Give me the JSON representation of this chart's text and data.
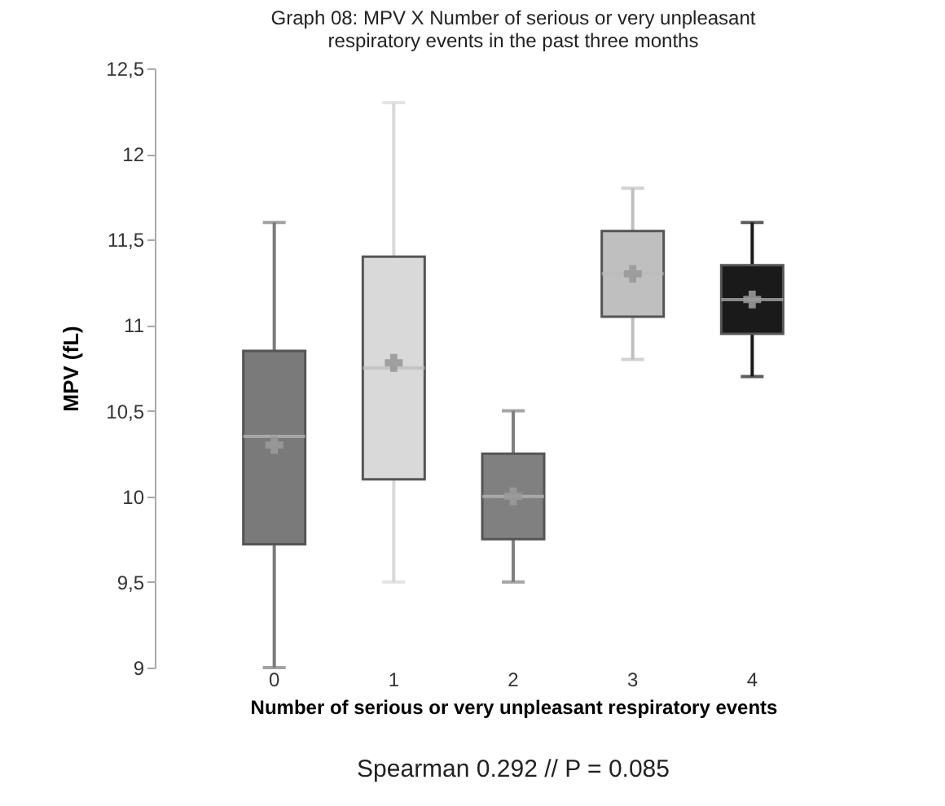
{
  "chart_data": {
    "type": "box",
    "title": [
      "Graph 08: MPV X Number of serious or very unpleasant",
      "respiratory events in the past three months"
    ],
    "xlabel": "Number of serious or very unpleasant respiratory events",
    "ylabel": "MPV (fL)",
    "categories": [
      "0",
      "1",
      "2",
      "3",
      "4"
    ],
    "colors": [
      "#7a7a7a",
      "#d9d9d9",
      "#808080",
      "#bfbfbf",
      "#1a1a1a"
    ],
    "boxes": [
      {
        "low": 9.0,
        "q1": 9.72,
        "median": 10.35,
        "q3": 10.85,
        "high": 11.6,
        "mean": 10.3
      },
      {
        "low": 9.5,
        "q1": 10.1,
        "median": 10.75,
        "q3": 11.4,
        "high": 12.3,
        "mean": 10.78
      },
      {
        "low": 9.5,
        "q1": 9.75,
        "median": 10.0,
        "q3": 10.25,
        "high": 10.5,
        "mean": 10.0
      },
      {
        "low": 10.8,
        "q1": 11.05,
        "median": 11.3,
        "q3": 11.55,
        "high": 11.8,
        "mean": 11.3
      },
      {
        "low": 10.7,
        "q1": 10.95,
        "median": 11.15,
        "q3": 11.35,
        "high": 11.6,
        "mean": 11.15
      }
    ],
    "marker": "cross",
    "ylim": [
      9,
      12.5
    ],
    "yticks": [
      9,
      {
        "value": 9.5,
        "label": "9,5"
      },
      10,
      {
        "value": 10.5,
        "label": "10,5"
      },
      11,
      {
        "value": 11.5,
        "label": "11,5"
      },
      12,
      {
        "value": 12.5,
        "label": "12,5"
      }
    ],
    "grid": false,
    "annotations": [
      "Spearman 0.292 // P = 0.085"
    ]
  }
}
